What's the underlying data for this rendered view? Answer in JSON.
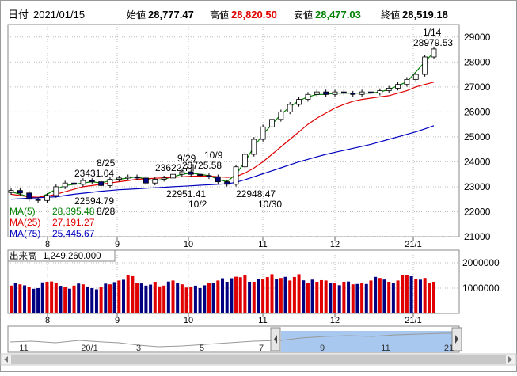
{
  "header": {
    "date_label": "日付",
    "date_value": "2021/01/15",
    "open_label": "始値",
    "open_value": "28,777.47",
    "high_label": "高値",
    "high_value": "28,820.50",
    "low_label": "安値",
    "low_value": "28,477.03",
    "close_label": "終値",
    "close_value": "28,519.18"
  },
  "colors": {
    "high": "#e00000",
    "low": "#008000",
    "up_candle": "#ffffff",
    "down_candle": "#000080",
    "ma5": "#008000",
    "ma25": "#e00000",
    "ma75": "#0000c0",
    "vol_up": "#e00000",
    "vol_down": "#000080",
    "grid": "#bbbbbb",
    "nav_fill": "#a8c8f0"
  },
  "legend": {
    "ma5": "MA(5)",
    "ma5_value": "28,395.48",
    "ma25": "MA(25)",
    "ma25_value": "27,191.27",
    "ma75": "MA(75)",
    "ma75_value": "25,445.67"
  },
  "volume_label": "出来高",
  "volume_value": "1,249,260.000",
  "price_ticks": [
    "29000",
    "28000",
    "27000",
    "26000",
    "25000",
    "24000",
    "23000",
    "22000",
    "21000"
  ],
  "volume_ticks": [
    "2000000",
    "1000000"
  ],
  "month_ticks": [
    "8",
    "9",
    "10",
    "11",
    "12",
    "21/1"
  ],
  "nav_ticks": [
    "11",
    "20/1",
    "3",
    "5",
    "7",
    "9",
    "11",
    "21"
  ],
  "annotations": [
    {
      "date": "8/25",
      "value": "23431.04"
    },
    {
      "date": "8/28",
      "value": "22594.79"
    },
    {
      "date": "9/29",
      "value": "23622.74"
    },
    {
      "date": "10/2",
      "value": "22951.41"
    },
    {
      "date": "10/9",
      "value": "23725.58"
    },
    {
      "date": "10/30",
      "value": "22948.47"
    },
    {
      "date": "1/14",
      "value": "28979.53"
    }
  ],
  "chart_data": [
    {
      "type": "candlestick",
      "x_labels": [
        "8",
        "9",
        "10",
        "11",
        "12",
        "21/1"
      ],
      "ylim": [
        21000,
        29500
      ],
      "series": [
        {
          "name": "MA(5)",
          "values": [
            22800,
            22700,
            22600,
            22550,
            22700,
            22900,
            23050,
            23100,
            23150,
            23200,
            23150,
            23250,
            23300,
            23350,
            23400,
            23300,
            23250,
            23300,
            23400,
            23500,
            23550,
            23500,
            23450,
            23300,
            23200,
            23500,
            24000,
            24600,
            25100,
            25500,
            25900,
            26200,
            26450,
            26600,
            26700,
            26700,
            26750,
            26750,
            26750,
            26750,
            26750,
            26800,
            26900,
            27050,
            27200,
            27600,
            28000,
            28395.48
          ]
        },
        {
          "name": "MA(25)",
          "values": [
            22700,
            22650,
            22600,
            22580,
            22620,
            22700,
            22800,
            22900,
            23000,
            23050,
            23100,
            23150,
            23200,
            23250,
            23300,
            23320,
            23340,
            23360,
            23380,
            23400,
            23420,
            23430,
            23430,
            23400,
            23380,
            23400,
            23550,
            23750,
            24000,
            24300,
            24600,
            24900,
            25200,
            25500,
            25750,
            25950,
            26150,
            26300,
            26420,
            26500,
            26550,
            26600,
            26650,
            26750,
            26850,
            27000,
            27100,
            27191.27
          ]
        },
        {
          "name": "MA(75)",
          "values": [
            22500,
            22520,
            22540,
            22560,
            22580,
            22600,
            22650,
            22700,
            22740,
            22780,
            22820,
            22850,
            22880,
            22900,
            22920,
            22940,
            22960,
            22980,
            23000,
            23020,
            23040,
            23060,
            23080,
            23100,
            23120,
            23180,
            23280,
            23400,
            23520,
            23640,
            23760,
            23880,
            24000,
            24100,
            24200,
            24300,
            24380,
            24460,
            24540,
            24620,
            24700,
            24800,
            24900,
            25000,
            25100,
            25200,
            25320,
            25445.67
          ]
        }
      ],
      "closes": [
        22850,
        22750,
        22500,
        22450,
        22650,
        23000,
        23150,
        23100,
        23250,
        23200,
        23050,
        23300,
        23350,
        23400,
        23350,
        23150,
        23300,
        23350,
        23500,
        23600,
        23500,
        23450,
        23400,
        23200,
        23100,
        23800,
        24300,
        24900,
        25400,
        25700,
        26000,
        26300,
        26500,
        26700,
        26800,
        26700,
        26800,
        26750,
        26700,
        26800,
        26750,
        26850,
        26950,
        27100,
        27300,
        27500,
        28200,
        28519.18
      ]
    },
    {
      "type": "bar",
      "name": "出来高",
      "ylim": [
        0,
        2500000
      ],
      "values": [
        1100000,
        1150000,
        1050000,
        1000000,
        1250000,
        1200000,
        1050000,
        1100000,
        1150000,
        1000000,
        1050000,
        1150000,
        1300000,
        1500000,
        1200000,
        1100000,
        1250000,
        1100000,
        1300000,
        1150000,
        1050000,
        1000000,
        1200000,
        1300000,
        1250000,
        1450000,
        1500000,
        1250000,
        1350000,
        1550000,
        1400000,
        1300000,
        1550000,
        1200000,
        1250000,
        1300000,
        1200000,
        1250000,
        1150000,
        1200000,
        1300000,
        1400000,
        1250000,
        1300000,
        1500000,
        1350000,
        1400000,
        1249260
      ]
    }
  ]
}
